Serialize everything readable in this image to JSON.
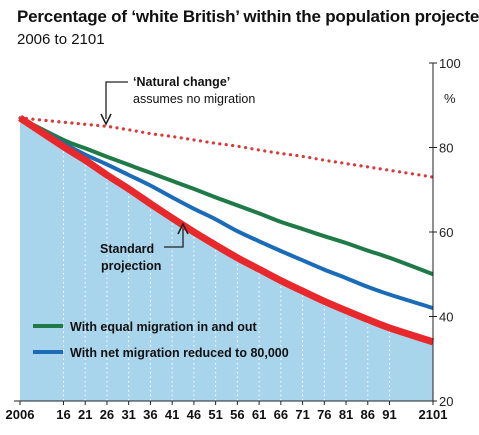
{
  "title": "Percentage of ‘white British’ within the population projected",
  "subtitle": "2006 to 2101",
  "chart_data": {
    "type": "line",
    "x": [
      2006,
      2016,
      2021,
      2026,
      2031,
      2036,
      2041,
      2046,
      2051,
      2056,
      2061,
      2066,
      2071,
      2076,
      2081,
      2086,
      2091,
      2101
    ],
    "x_tick_labels": [
      "2006",
      "16",
      "21",
      "26",
      "31",
      "36",
      "41",
      "46",
      "51",
      "56",
      "61",
      "66",
      "71",
      "76",
      "81",
      "86",
      "91",
      "2101"
    ],
    "ylim": [
      20,
      100
    ],
    "y_ticks": [
      20,
      40,
      60,
      80,
      100
    ],
    "ylabel": "%",
    "axis_side": "right",
    "grid": "vertical dotted",
    "series": [
      {
        "name": "Natural change",
        "style": "dotted",
        "color": "#d93a3a",
        "values": [
          87.0,
          86.0,
          85.5,
          85.0,
          84.2,
          83.3,
          82.6,
          81.8,
          81.0,
          80.3,
          79.4,
          78.6,
          77.9,
          77.0,
          76.2,
          75.4,
          74.6,
          73.0
        ]
      },
      {
        "name": "With equal migration in and out",
        "style": "solid",
        "color": "#1e7a46",
        "values": [
          87.0,
          81.8,
          79.8,
          77.8,
          75.9,
          74.0,
          72.1,
          70.2,
          68.2,
          66.3,
          64.4,
          62.4,
          60.7,
          59.0,
          57.4,
          55.6,
          53.9,
          50.0
        ]
      },
      {
        "name": "With net migration reduced to 80,000",
        "style": "solid",
        "color": "#1a6cb8",
        "values": [
          87.0,
          81.0,
          78.3,
          76.0,
          73.5,
          71.0,
          68.2,
          65.5,
          63.0,
          60.2,
          57.8,
          55.5,
          53.3,
          51.1,
          49.1,
          47.0,
          45.2,
          42.0
        ]
      },
      {
        "name": "Standard projection",
        "style": "solid-thick",
        "color": "#e8282b",
        "values": [
          87.0,
          80.2,
          77.0,
          73.5,
          70.2,
          66.7,
          63.3,
          60.0,
          56.9,
          53.9,
          51.2,
          48.5,
          46.0,
          43.6,
          41.4,
          39.3,
          37.3,
          34.0
        ]
      }
    ],
    "annotations": [
      {
        "title": "‘Natural change’",
        "text": "assumes no migration"
      },
      {
        "text": [
          "Standard",
          "projection"
        ]
      }
    ],
    "legend": [
      {
        "label": "With equal migration in and out",
        "color": "#1e7a46"
      },
      {
        "label": "With net migration reduced to 80,000",
        "color": "#1a6cb8"
      }
    ],
    "colors": {
      "area_fill": "#a8d4ec",
      "accent": "#e8282b"
    }
  }
}
